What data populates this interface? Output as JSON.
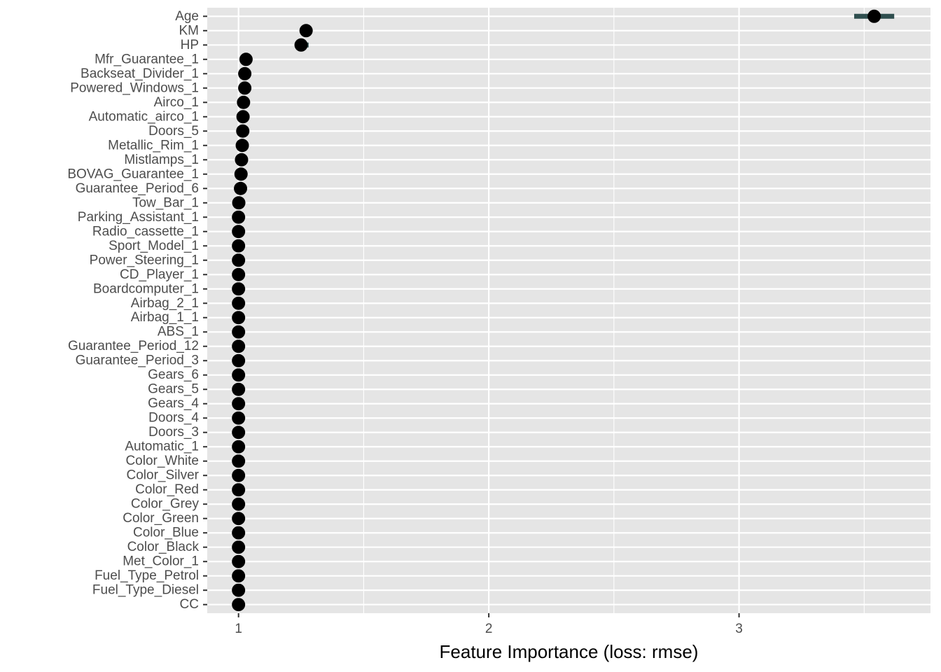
{
  "chart_data": {
    "type": "scatter",
    "title": "",
    "xlabel": "Feature Importance (loss: rmse)",
    "ylabel": "",
    "xlim": [
      0.875,
      3.765
    ],
    "x_ticks": [
      1,
      2,
      3
    ],
    "grid": true,
    "legend": "none",
    "colors": {
      "panel": "#e5e5e5",
      "grid": "#ffffff",
      "point": "#000000",
      "interval": "#2f4f4f",
      "text": "#4d4d4d"
    },
    "features": [
      {
        "name": "Age",
        "value": 3.54,
        "low": 3.46,
        "high": 3.62
      },
      {
        "name": "KM",
        "value": 1.27,
        "low": 1.26,
        "high": 1.28
      },
      {
        "name": "HP",
        "value": 1.25,
        "low": 1.24,
        "high": 1.28
      },
      {
        "name": "Mfr_Guarantee_1",
        "value": 1.03,
        "low": 1.02,
        "high": 1.04
      },
      {
        "name": "Backseat_Divider_1",
        "value": 1.025,
        "low": 1.02,
        "high": 1.03
      },
      {
        "name": "Powered_Windows_1",
        "value": 1.025,
        "low": 1.02,
        "high": 1.03
      },
      {
        "name": "Airco_1",
        "value": 1.02,
        "low": 1.015,
        "high": 1.025
      },
      {
        "name": "Automatic_airco_1",
        "value": 1.018,
        "low": 1.013,
        "high": 1.023
      },
      {
        "name": "Doors_5",
        "value": 1.017,
        "low": 1.012,
        "high": 1.022
      },
      {
        "name": "Metallic_Rim_1",
        "value": 1.015,
        "low": 1.01,
        "high": 1.02
      },
      {
        "name": "Mistlamps_1",
        "value": 1.012,
        "low": 1.008,
        "high": 1.016
      },
      {
        "name": "BOVAG_Guarantee_1",
        "value": 1.01,
        "low": 1.006,
        "high": 1.014
      },
      {
        "name": "Guarantee_Period_6",
        "value": 1.008,
        "low": 1.004,
        "high": 1.012
      },
      {
        "name": "Tow_Bar_1",
        "value": 1.001,
        "low": 1.0,
        "high": 1.002
      },
      {
        "name": "Parking_Assistant_1",
        "value": 1.0,
        "low": 1.0,
        "high": 1.0
      },
      {
        "name": "Radio_cassette_1",
        "value": 1.0,
        "low": 1.0,
        "high": 1.0
      },
      {
        "name": "Sport_Model_1",
        "value": 1.0,
        "low": 1.0,
        "high": 1.0
      },
      {
        "name": "Power_Steering_1",
        "value": 1.0,
        "low": 1.0,
        "high": 1.0
      },
      {
        "name": "CD_Player_1",
        "value": 1.0,
        "low": 1.0,
        "high": 1.0
      },
      {
        "name": "Boardcomputer_1",
        "value": 1.0,
        "low": 1.0,
        "high": 1.0
      },
      {
        "name": "Airbag_2_1",
        "value": 1.0,
        "low": 1.0,
        "high": 1.0
      },
      {
        "name": "Airbag_1_1",
        "value": 1.0,
        "low": 1.0,
        "high": 1.0
      },
      {
        "name": "ABS_1",
        "value": 1.0,
        "low": 1.0,
        "high": 1.0
      },
      {
        "name": "Guarantee_Period_12",
        "value": 1.0,
        "low": 1.0,
        "high": 1.0
      },
      {
        "name": "Guarantee_Period_3",
        "value": 1.0,
        "low": 1.0,
        "high": 1.0
      },
      {
        "name": "Gears_6",
        "value": 1.0,
        "low": 1.0,
        "high": 1.0
      },
      {
        "name": "Gears_5",
        "value": 1.0,
        "low": 1.0,
        "high": 1.0
      },
      {
        "name": "Gears_4",
        "value": 1.0,
        "low": 1.0,
        "high": 1.0
      },
      {
        "name": "Doors_4",
        "value": 1.0,
        "low": 1.0,
        "high": 1.0
      },
      {
        "name": "Doors_3",
        "value": 1.0,
        "low": 1.0,
        "high": 1.0
      },
      {
        "name": "Automatic_1",
        "value": 1.0,
        "low": 1.0,
        "high": 1.0
      },
      {
        "name": "Color_White",
        "value": 1.0,
        "low": 1.0,
        "high": 1.0
      },
      {
        "name": "Color_Silver",
        "value": 1.0,
        "low": 1.0,
        "high": 1.0
      },
      {
        "name": "Color_Red",
        "value": 1.0,
        "low": 1.0,
        "high": 1.0
      },
      {
        "name": "Color_Grey",
        "value": 1.0,
        "low": 1.0,
        "high": 1.0
      },
      {
        "name": "Color_Green",
        "value": 1.0,
        "low": 1.0,
        "high": 1.0
      },
      {
        "name": "Color_Blue",
        "value": 1.0,
        "low": 1.0,
        "high": 1.0
      },
      {
        "name": "Color_Black",
        "value": 1.0,
        "low": 1.0,
        "high": 1.0
      },
      {
        "name": "Met_Color_1",
        "value": 1.0,
        "low": 1.0,
        "high": 1.0
      },
      {
        "name": "Fuel_Type_Petrol",
        "value": 1.0,
        "low": 1.0,
        "high": 1.0
      },
      {
        "name": "Fuel_Type_Diesel",
        "value": 1.0,
        "low": 1.0,
        "high": 1.0
      },
      {
        "name": "CC",
        "value": 1.0,
        "low": 1.0,
        "high": 1.0
      }
    ]
  }
}
